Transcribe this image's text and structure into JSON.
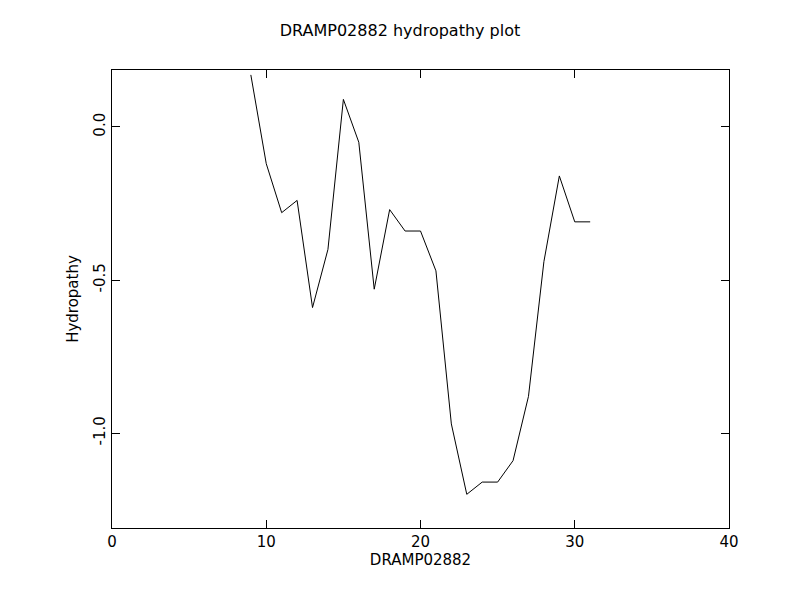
{
  "chart_data": {
    "type": "line",
    "title": "DRAMP02882 hydropathy plot",
    "x_label": "DRAMP02882",
    "y_label": "Hydropathy",
    "x": [
      9,
      10,
      11,
      12,
      13,
      14,
      15,
      16,
      17,
      18,
      19,
      20,
      21,
      22,
      23,
      24,
      25,
      26,
      27,
      28,
      29,
      30,
      31
    ],
    "values": [
      0.17,
      -0.12,
      -0.28,
      -0.24,
      -0.59,
      -0.4,
      0.09,
      -0.05,
      -0.53,
      -0.27,
      -0.34,
      -0.34,
      -0.47,
      -0.97,
      -1.2,
      -1.16,
      -1.16,
      -1.09,
      -0.88,
      -0.44,
      -0.16,
      -0.31,
      -0.31
    ],
    "color": "#000000",
    "xlim": [
      0,
      40
    ],
    "xticks": [
      0,
      10,
      20,
      30,
      40
    ],
    "ylim": [
      -1.31,
      0.186
    ],
    "yticks": [
      {
        "value": 0,
        "label": "0.0"
      },
      -0.5,
      {
        "value": -1,
        "label": "-1.0"
      }
    ],
    "grid": false
  }
}
